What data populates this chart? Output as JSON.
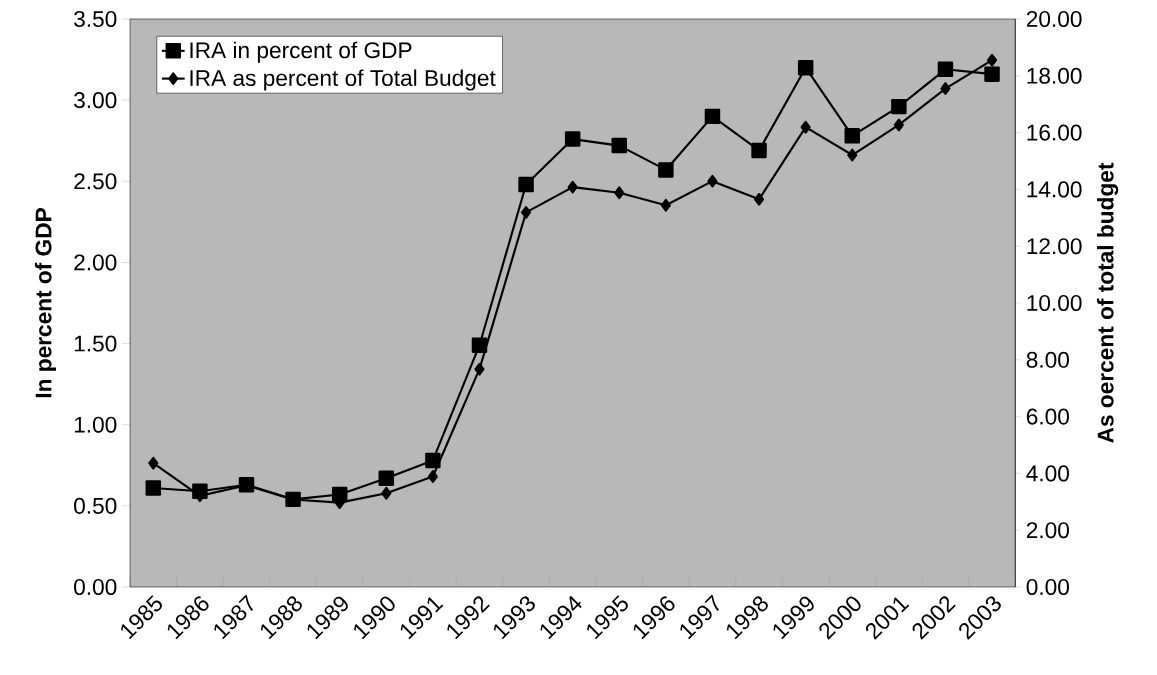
{
  "chart_data": {
    "type": "line",
    "ylabel": "In percent of GDP",
    "y2label": "As oercent of total budget",
    "categories": [
      "1985",
      "1986",
      "1987",
      "1988",
      "1989",
      "1990",
      "1991",
      "1992",
      "1993",
      "1994",
      "1995",
      "1996",
      "1997",
      "1998",
      "1999",
      "2000",
      "2001",
      "2002",
      "2003"
    ],
    "series": [
      {
        "name": "IRA in percent of GDP",
        "color": "#000000",
        "marker": "square",
        "values": [
          0.61,
          0.59,
          0.63,
          0.54,
          0.57,
          0.67,
          0.78,
          1.49,
          2.48,
          2.76,
          2.72,
          2.57,
          2.9,
          2.69,
          3.2,
          2.78,
          2.96,
          3.19,
          3.16
        ]
      },
      {
        "name": "IRA as percent of Total Budget",
        "color": "#000000",
        "marker": "diamond",
        "axis": "y2",
        "values": [
          4.36,
          3.21,
          3.58,
          3.08,
          2.97,
          3.3,
          3.89,
          7.67,
          13.19,
          14.08,
          13.88,
          13.44,
          14.29,
          13.65,
          16.19,
          15.21,
          16.27,
          17.55,
          18.55
        ]
      }
    ],
    "ylim": [
      0,
      3.5
    ],
    "yticks": [
      {
        "value": 0,
        "label": "0.00"
      },
      {
        "value": 0.5,
        "label": "0.50"
      },
      {
        "value": 1,
        "label": "1.00"
      },
      {
        "value": 1.5,
        "label": "1.50"
      },
      {
        "value": 2,
        "label": "2.00"
      },
      {
        "value": 2.5,
        "label": "2.50"
      },
      {
        "value": 3,
        "label": "3.00"
      },
      {
        "value": 3.5,
        "label": "3.50"
      }
    ],
    "y2lim": [
      0,
      20
    ],
    "y2ticks": [
      {
        "value": 0,
        "label": "0.00"
      },
      {
        "value": 2,
        "label": "2.00"
      },
      {
        "value": 4,
        "label": "4.00"
      },
      {
        "value": 6,
        "label": "6.00"
      },
      {
        "value": 8,
        "label": "8.00"
      },
      {
        "value": 10,
        "label": "10.00"
      },
      {
        "value": 12,
        "label": "12.00"
      },
      {
        "value": 14,
        "label": "14.00"
      },
      {
        "value": 16,
        "label": "16.00"
      },
      {
        "value": 18,
        "label": "18.00"
      },
      {
        "value": 20,
        "label": "20.00"
      }
    ],
    "line_style": "solid",
    "grid": false,
    "legend": "top left"
  }
}
